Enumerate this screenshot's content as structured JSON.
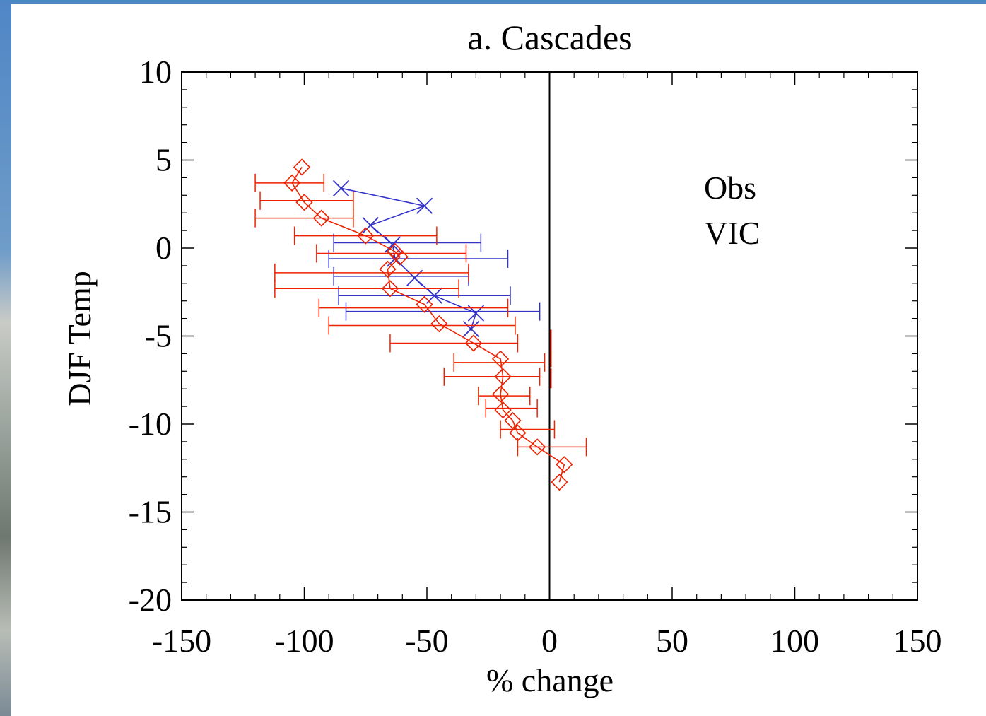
{
  "chart_data": {
    "type": "scatter",
    "title": "a. Cascades",
    "xlabel": "% change",
    "ylabel": "DJF Temp",
    "xlim": [
      -150,
      150
    ],
    "ylim": [
      -20,
      10
    ],
    "x_ticks": [
      -150,
      -100,
      -50,
      0,
      50,
      100,
      150
    ],
    "y_ticks": [
      -20,
      -15,
      -10,
      -5,
      0,
      5,
      10
    ],
    "x_tick_labels": [
      "-150",
      "-100",
      "-50",
      "0",
      "50",
      "100",
      "150"
    ],
    "y_tick_labels": [
      "-20",
      "-15",
      "-10",
      "-5",
      "0",
      "5",
      "10"
    ],
    "grid": false,
    "reference_line_x": 0,
    "legend": {
      "placement": "upper-right",
      "entries": [
        {
          "label": "Obs",
          "color": "#3333cc"
        },
        {
          "label": "VIC",
          "color": "#ee2200"
        }
      ]
    },
    "series": [
      {
        "name": "Obs",
        "color": "#3333cc",
        "marker": "x",
        "line": [
          {
            "x": -85,
            "y": 3.4
          },
          {
            "x": -51,
            "y": 2.4
          },
          {
            "x": -73,
            "y": 1.3
          },
          {
            "x": -64,
            "y": 0.2
          },
          {
            "x": -63,
            "y": -0.6
          },
          {
            "x": -55,
            "y": -1.7
          },
          {
            "x": -47,
            "y": -2.7
          },
          {
            "x": -30,
            "y": -3.7
          },
          {
            "x": -32,
            "y": -4.6
          }
        ],
        "error_bars": [
          {
            "y": 0.3,
            "x1": -88,
            "x2": -28
          },
          {
            "y": -0.6,
            "x1": -90,
            "x2": -17
          },
          {
            "y": -1.6,
            "x1": -88,
            "x2": -33
          },
          {
            "y": -2.7,
            "x1": -86,
            "x2": -16
          },
          {
            "y": -3.6,
            "x1": -83,
            "x2": -4
          }
        ]
      },
      {
        "name": "VIC",
        "color": "#ee2200",
        "marker": "diamond",
        "line": [
          {
            "x": -101,
            "y": 4.6
          },
          {
            "x": -105,
            "y": 3.7
          },
          {
            "x": -100,
            "y": 2.6
          },
          {
            "x": -93,
            "y": 1.7
          },
          {
            "x": -75,
            "y": 0.7
          },
          {
            "x": -63,
            "y": -0.2
          },
          {
            "x": -61,
            "y": -0.5
          },
          {
            "x": -66,
            "y": -1.2
          },
          {
            "x": -65,
            "y": -2.3
          },
          {
            "x": -51,
            "y": -3.2
          },
          {
            "x": -45,
            "y": -4.3
          },
          {
            "x": -31,
            "y": -5.4
          },
          {
            "x": -20,
            "y": -6.3
          },
          {
            "x": -19,
            "y": -7.3
          },
          {
            "x": -20,
            "y": -8.3
          },
          {
            "x": -19,
            "y": -9.2
          },
          {
            "x": -15,
            "y": -9.8
          },
          {
            "x": -13,
            "y": -10.5
          },
          {
            "x": -5,
            "y": -11.3
          },
          {
            "x": 6,
            "y": -12.3
          },
          {
            "x": 4,
            "y": -13.3
          }
        ],
        "error_bars": [
          {
            "y": 3.7,
            "x1": -120,
            "x2": -92
          },
          {
            "y": 2.7,
            "x1": -118,
            "x2": -80
          },
          {
            "y": 1.7,
            "x1": -120,
            "x2": -80
          },
          {
            "y": 0.7,
            "x1": -104,
            "x2": -46
          },
          {
            "y": -0.3,
            "x1": -95,
            "x2": -34
          },
          {
            "y": -1.4,
            "x1": -112,
            "x2": -33
          },
          {
            "y": -2.3,
            "x1": -112,
            "x2": -37
          },
          {
            "y": -3.4,
            "x1": -94,
            "x2": -17
          },
          {
            "y": -4.4,
            "x1": -90,
            "x2": -14
          },
          {
            "y": -5.4,
            "x1": -65,
            "x2": -13
          },
          {
            "y": -6.5,
            "x1": -39,
            "x2": -2
          },
          {
            "y": -7.3,
            "x1": -43,
            "x2": -4
          },
          {
            "y": -8.4,
            "x1": -29,
            "x2": -8
          },
          {
            "y": -9.1,
            "x1": -26,
            "x2": -5
          },
          {
            "y": -10.3,
            "x1": -20,
            "x2": 2
          },
          {
            "y": -11.3,
            "x1": -13,
            "x2": 15
          }
        ]
      }
    ],
    "vic_zero_column": [
      {
        "y": -5.2
      },
      {
        "y": -6.2
      },
      {
        "y": -7.4
      }
    ]
  }
}
